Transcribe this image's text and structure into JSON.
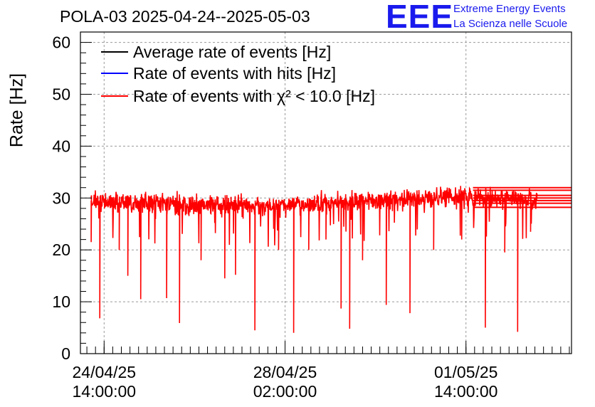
{
  "chart_data": {
    "type": "line",
    "title": "POLA-03 2025-04-24--2025-05-03",
    "ylabel": "Rate [Hz]",
    "xlabel": "",
    "ylim": [
      0,
      62
    ],
    "yticks": [
      0,
      10,
      20,
      30,
      40,
      50,
      60
    ],
    "xlim": [
      "2025-04-24T03:00",
      "2025-05-03T15:00"
    ],
    "xticks": [
      {
        "label1": "24/04/25",
        "label2": "14:00:00",
        "time": "2025-04-24T14:00"
      },
      {
        "label1": "28/04/25",
        "label2": "02:00:00",
        "time": "2025-04-28T02:00"
      },
      {
        "label1": "01/05/25",
        "label2": "14:00:00",
        "time": "2025-05-01T14:00"
      }
    ],
    "grid": true,
    "legend_position": "top-left",
    "series": [
      {
        "name": "Average rate of events [Hz]",
        "color": "#000000"
      },
      {
        "name": "Rate of events with hits [Hz]",
        "color": "#0000ff"
      },
      {
        "name": "Rate of events with χ² < 10.0 [Hz]",
        "color": "#ff0000",
        "data_start": "2025-04-24T08:00",
        "data_end": "2025-05-02T23:00",
        "baseline": [
          {
            "t": "2025-04-24T08:00",
            "v": 29.5
          },
          {
            "t": "2025-04-26T00:00",
            "v": 28.8
          },
          {
            "t": "2025-04-27T12:00",
            "v": 28.5
          },
          {
            "t": "2025-04-29T00:00",
            "v": 29.0
          },
          {
            "t": "2025-04-30T06:00",
            "v": 29.8
          },
          {
            "t": "2025-05-01T06:00",
            "v": 30.3
          },
          {
            "t": "2025-05-02T23:00",
            "v": 29.8
          }
        ],
        "noise": 1.4,
        "dips": [
          {
            "t": "2025-04-24T08:00",
            "v": 21.5
          },
          {
            "t": "2025-04-24T12:00",
            "v": 6.8
          },
          {
            "t": "2025-04-24T21:00",
            "v": 20.0
          },
          {
            "t": "2025-04-25T01:00",
            "v": 15.0
          },
          {
            "t": "2025-04-25T07:00",
            "v": 10.5
          },
          {
            "t": "2025-04-25T19:00",
            "v": 10.7
          },
          {
            "t": "2025-04-26T01:00",
            "v": 5.9
          },
          {
            "t": "2025-04-26T11:00",
            "v": 18.0
          },
          {
            "t": "2025-04-26T22:00",
            "v": 14.5
          },
          {
            "t": "2025-04-27T03:00",
            "v": 15.2
          },
          {
            "t": "2025-04-27T12:00",
            "v": 4.5
          },
          {
            "t": "2025-04-27T23:00",
            "v": 20.0
          },
          {
            "t": "2025-04-28T06:00",
            "v": 4.0
          },
          {
            "t": "2025-04-28T13:00",
            "v": 20.0
          },
          {
            "t": "2025-04-28T21:00",
            "v": 22.0
          },
          {
            "t": "2025-04-29T04:00",
            "v": 8.7
          },
          {
            "t": "2025-04-29T08:00",
            "v": 4.8
          },
          {
            "t": "2025-04-29T14:00",
            "v": 18.0
          },
          {
            "t": "2025-04-30T01:00",
            "v": 9.4
          },
          {
            "t": "2025-04-30T12:00",
            "v": 7.8
          },
          {
            "t": "2025-04-30T23:00",
            "v": 20.0
          },
          {
            "t": "2025-05-01T12:00",
            "v": 22.0
          },
          {
            "t": "2025-05-01T23:00",
            "v": 5.0
          },
          {
            "t": "2025-05-02T08:00",
            "v": 19.5
          },
          {
            "t": "2025-05-02T14:00",
            "v": 4.2
          },
          {
            "t": "2025-05-02T20:00",
            "v": 23.5
          }
        ],
        "flat_levels": [
          32.0,
          31.5,
          30.5,
          30.0,
          29.5,
          29.0,
          28.2
        ]
      }
    ]
  },
  "logo": {
    "text": "EEE",
    "line1": "Extreme Energy Events",
    "line2": "La Scienza nelle Scuole",
    "color": "#1a1aee"
  }
}
